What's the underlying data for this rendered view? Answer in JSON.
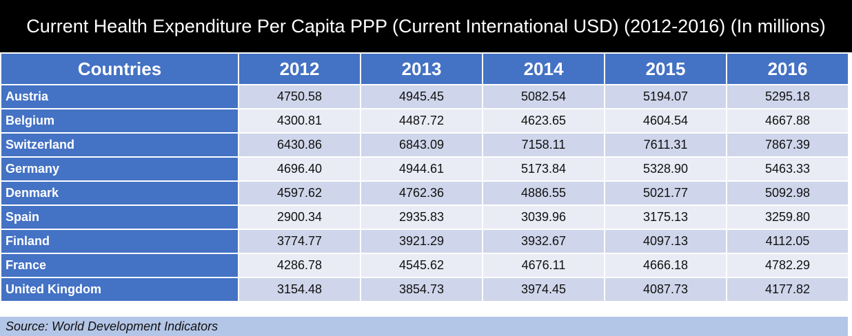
{
  "title": "Current Health Expenditure Per Capita PPP (Current International USD) (2012-2016) (In millions)",
  "source": "Source: World Development Indicators",
  "colors": {
    "header": "#4472c4",
    "row_odd": "#cfd5ea",
    "row_even": "#e9ebf5",
    "source_bar": "#b4c6e7",
    "title_bar": "#000000"
  },
  "chart_data": {
    "type": "table",
    "title": "Current Health Expenditure Per Capita PPP (Current International USD) (2012-2016) (In millions)",
    "columns": [
      "Countries",
      "2012",
      "2013",
      "2014",
      "2015",
      "2016"
    ],
    "rows": [
      [
        "Austria",
        "4750.58",
        "4945.45",
        "5082.54",
        "5194.07",
        "5295.18"
      ],
      [
        "Belgium",
        "4300.81",
        "4487.72",
        "4623.65",
        "4604.54",
        "4667.88"
      ],
      [
        "Switzerland",
        "6430.86",
        "6843.09",
        "7158.11",
        "7611.31",
        "7867.39"
      ],
      [
        "Germany",
        "4696.40",
        "4944.61",
        "5173.84",
        "5328.90",
        "5463.33"
      ],
      [
        "Denmark",
        "4597.62",
        "4762.36",
        "4886.55",
        "5021.77",
        "5092.98"
      ],
      [
        "Spain",
        "2900.34",
        "2935.83",
        "3039.96",
        "3175.13",
        "3259.80"
      ],
      [
        "Finland",
        "3774.77",
        "3921.29",
        "3932.67",
        "4097.13",
        "4112.05"
      ],
      [
        "France",
        "4286.78",
        "4545.62",
        "4676.11",
        "4666.18",
        "4782.29"
      ],
      [
        "United Kingdom",
        "3154.48",
        "3854.73",
        "3974.45",
        "4087.73",
        "4177.82"
      ]
    ]
  }
}
